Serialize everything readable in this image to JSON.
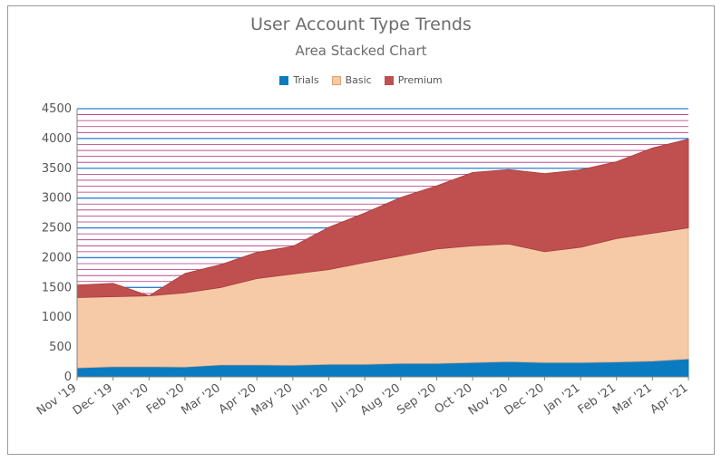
{
  "chart_data": {
    "type": "area",
    "stacked": true,
    "title": "User Account Type Trends",
    "subtitle": "Area Stacked Chart",
    "categories": [
      "Nov '19",
      "Dec '19",
      "Jan '20",
      "Feb '20",
      "Mar '20",
      "Apr '20",
      "May '20",
      "Jun '20",
      "Jul '20",
      "Aug '20",
      "Sep '20",
      "Oct '20",
      "Nov '20",
      "Dec '20",
      "Jan '21",
      "Feb '21",
      "Mar '21",
      "Apr '21"
    ],
    "series": [
      {
        "name": "Trials",
        "color": "#0a7bc1",
        "values": [
          150,
          170,
          170,
          165,
          200,
          200,
          195,
          210,
          210,
          225,
          225,
          240,
          255,
          240,
          240,
          250,
          265,
          300
        ]
      },
      {
        "name": "Basic",
        "color": "#f6caa6",
        "values": [
          1180,
          1175,
          1190,
          1245,
          1300,
          1450,
          1530,
          1590,
          1710,
          1805,
          1920,
          1960,
          1975,
          1860,
          1935,
          2070,
          2145,
          2200
        ]
      },
      {
        "name": "Premium",
        "color": "#c05050",
        "values": [
          210,
          225,
          0,
          325,
          385,
          440,
          465,
          710,
          830,
          980,
          1060,
          1230,
          1250,
          1310,
          1300,
          1290,
          1430,
          1490
        ]
      }
    ],
    "ylim": [
      0,
      4500
    ],
    "yticks": [
      0,
      500,
      1000,
      1500,
      2000,
      2500,
      3000,
      3500,
      4000,
      4500
    ],
    "grid": {
      "major_color": "#2f7fd0",
      "minor_color": "#b0307a",
      "minor_step": 100
    },
    "legend_position": "top"
  }
}
